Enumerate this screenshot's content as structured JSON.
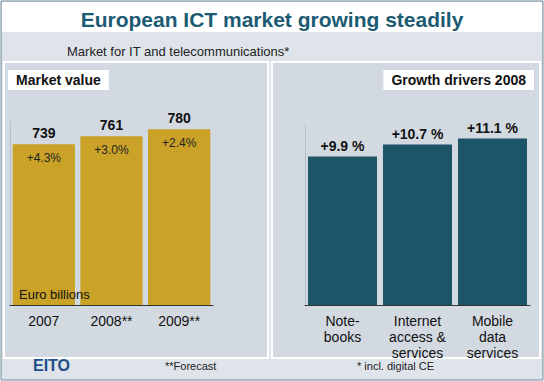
{
  "title": "European ICT market growing steadily",
  "subtitle": "Market for IT and telecommunications*",
  "source": "EITO",
  "notes": [
    "**Forecast",
    "* incl. digital CE"
  ],
  "chart_data": [
    {
      "type": "bar",
      "title": "Market value",
      "y_label": "Euro billions",
      "categories": [
        "2007",
        "2008**",
        "2009**"
      ],
      "values": [
        739,
        761,
        780
      ],
      "annotations": [
        "+4.3%",
        "+3.0%",
        "+2.4%"
      ],
      "color": "#c9a227",
      "ylim": [
        300,
        800
      ],
      "data_labels": true,
      "tick_labels": "x",
      "grid": false
    },
    {
      "type": "bar",
      "title": "Growth drivers 2008",
      "categories": [
        "Note-\nbooks",
        "Internet\naccess &\nservices",
        "Mobile\ndata\nservices"
      ],
      "values": [
        9.9,
        10.7,
        11.1
      ],
      "value_labels": [
        "+9.9 %",
        "+10.7 %",
        "+11.1 %"
      ],
      "color": "#1d5568",
      "ylim": [
        0,
        12
      ],
      "data_labels": true,
      "tick_labels": "x",
      "grid": false
    }
  ]
}
